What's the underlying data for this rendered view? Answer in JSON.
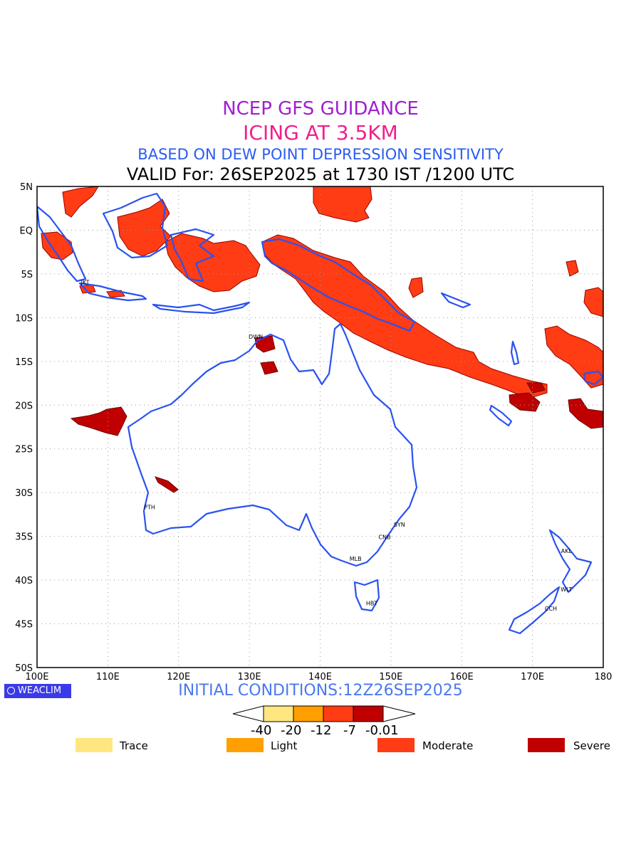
{
  "header": {
    "line1": "NCEP GFS GUIDANCE",
    "line2": "ICING AT 3.5KM",
    "line3": "BASED ON DEW POINT DEPRESSION SENSITIVITY",
    "line4": "VALID For: 26SEP2025 at 1730 IST /1200 UTC"
  },
  "map": {
    "lon_range": [
      100,
      180
    ],
    "lat_range": [
      -50,
      5
    ],
    "lon_ticks": [
      "100E",
      "110E",
      "120E",
      "130E",
      "140E",
      "150E",
      "160E",
      "170E",
      "180"
    ],
    "lat_ticks": [
      "5N",
      "EQ",
      "5S",
      "10S",
      "15S",
      "20S",
      "25S",
      "30S",
      "35S",
      "40S",
      "45S",
      "50S"
    ],
    "stations": [
      {
        "name": "JKT",
        "lon": 106.8,
        "lat": -6.2
      },
      {
        "name": "DWN",
        "lon": 130.9,
        "lat": -12.4
      },
      {
        "name": "PTH",
        "lon": 115.9,
        "lat": -31.9
      },
      {
        "name": "SYN",
        "lon": 151.2,
        "lat": -33.9
      },
      {
        "name": "CNB",
        "lon": 149.1,
        "lat": -35.3
      },
      {
        "name": "MLB",
        "lon": 145.0,
        "lat": -37.8
      },
      {
        "name": "HBT",
        "lon": 147.3,
        "lat": -42.9
      },
      {
        "name": "AKL",
        "lon": 174.8,
        "lat": -36.9
      },
      {
        "name": "WLT",
        "lon": 174.8,
        "lat": -41.3
      },
      {
        "name": "CCH",
        "lon": 172.6,
        "lat": -43.5
      }
    ]
  },
  "footer": {
    "brand": "WEACLIM",
    "initial_conditions": "INITIAL CONDITIONS:12Z26SEP2025"
  },
  "colorbar": {
    "levels": [
      "-40",
      "-20",
      "-12",
      "-7",
      "-0.01"
    ],
    "colors": [
      "#ffe680",
      "#ffa000",
      "#ff3c14",
      "#c00000"
    ]
  },
  "legend": [
    {
      "label": "Trace",
      "color": "#ffe680"
    },
    {
      "label": "Light",
      "color": "#ffa000"
    },
    {
      "label": "Moderate",
      "color": "#ff3c14"
    },
    {
      "label": "Severe",
      "color": "#c00000"
    }
  ]
}
